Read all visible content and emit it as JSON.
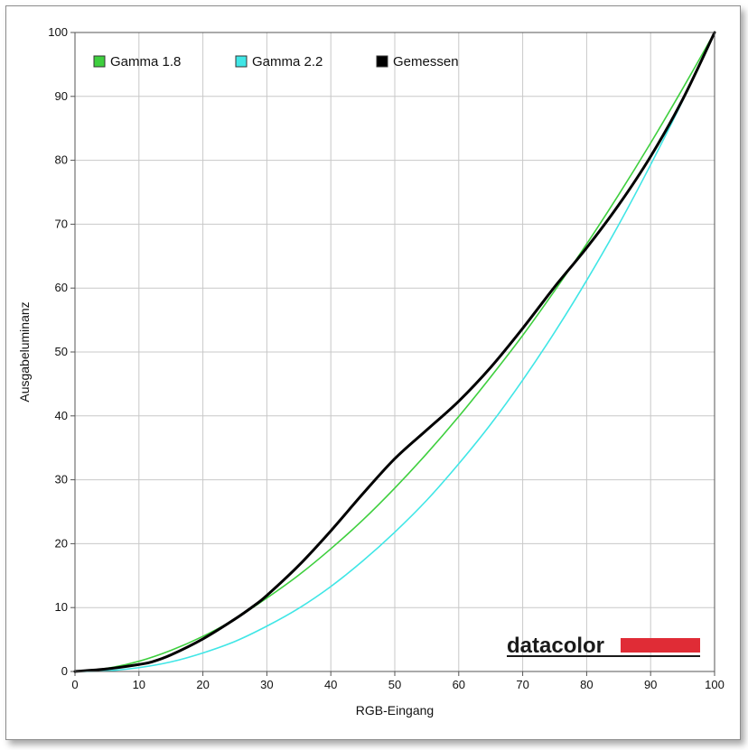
{
  "chart_data": {
    "type": "line",
    "xlabel": "RGB-Eingang",
    "ylabel": "Ausgabeluminanz",
    "xlim": [
      0,
      100
    ],
    "ylim": [
      0,
      100
    ],
    "x_ticks": [
      "0",
      "10",
      "20",
      "30",
      "40",
      "50",
      "60",
      "70",
      "80",
      "90",
      "100"
    ],
    "y_ticks": [
      "0",
      "10",
      "20",
      "30",
      "40",
      "50",
      "60",
      "70",
      "80",
      "90",
      "100"
    ],
    "grid": true,
    "legend_position": "top-left",
    "series": [
      {
        "name": "Gamma 1.8",
        "color": "#3ecf3e",
        "gamma": 1.8,
        "x": [
          0,
          5,
          10,
          15,
          20,
          25,
          30,
          35,
          40,
          45,
          50,
          55,
          60,
          65,
          70,
          75,
          80,
          85,
          90,
          95,
          100
        ],
        "y": [
          0,
          0.5,
          1.6,
          3.3,
          5.5,
          8.2,
          11.5,
          15.1,
          19.2,
          23.7,
          28.7,
          34.1,
          39.9,
          46.1,
          52.6,
          59.6,
          66.9,
          74.6,
          82.7,
          91.2,
          100
        ]
      },
      {
        "name": "Gamma 2.2",
        "color": "#40e6e6",
        "gamma": 2.2,
        "x": [
          0,
          5,
          10,
          15,
          20,
          25,
          30,
          35,
          40,
          45,
          50,
          55,
          60,
          65,
          70,
          75,
          80,
          85,
          90,
          95,
          100
        ],
        "y": [
          0,
          0.1,
          0.6,
          1.5,
          2.9,
          4.7,
          7.1,
          9.9,
          13.3,
          17.3,
          21.8,
          26.8,
          32.5,
          38.7,
          45.6,
          53.1,
          61.2,
          69.9,
          79.3,
          89.3,
          100
        ]
      },
      {
        "name": "Gemessen",
        "color": "#000000",
        "x": [
          0,
          5,
          10,
          12,
          15,
          20,
          25,
          28,
          30,
          35,
          40,
          45,
          50,
          55,
          60,
          65,
          70,
          75,
          80,
          85,
          90,
          95,
          100
        ],
        "y": [
          0,
          0.4,
          1.1,
          1.5,
          2.6,
          5.1,
          8.2,
          10.3,
          11.9,
          16.6,
          22.0,
          27.8,
          33.3,
          37.8,
          42.3,
          47.6,
          53.7,
          60.2,
          66.3,
          73.0,
          80.6,
          89.5,
          100
        ]
      }
    ]
  },
  "logo": {
    "text": "datacolor",
    "bar_color": "#e02c36"
  }
}
